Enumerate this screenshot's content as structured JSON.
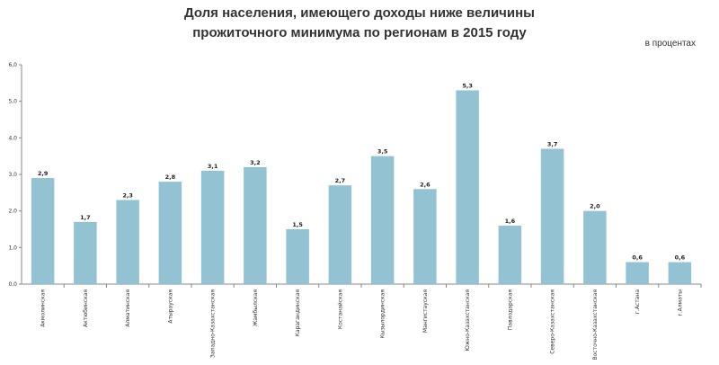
{
  "chart_data": {
    "type": "bar",
    "title_lines": [
      "Доля населения, имеющего доходы ниже величины",
      "прожиточного минимума  по регионам в 2015 году"
    ],
    "unit_label": "в процентах",
    "categories": [
      "Акмолинская",
      "Актюбинская",
      "Алматинская",
      "Атырауская",
      "Западно-Казахстанская",
      "Жамбылская",
      "Карагандинская",
      "Костанайская",
      "Кызылординская",
      "Мангистауская",
      "Южно-Казахстанская",
      "Павлодарская",
      "Северо-Казахстанская",
      "Восточно-Казахстанская",
      "г.Астана",
      "г.Алматы"
    ],
    "values": [
      2.9,
      1.7,
      2.3,
      2.8,
      3.1,
      3.2,
      1.5,
      2.7,
      3.5,
      2.6,
      5.3,
      1.6,
      3.7,
      2.0,
      0.6,
      0.6
    ],
    "value_labels": [
      "2,9",
      "1,7",
      "2,3",
      "2,8",
      "3,1",
      "3,2",
      "1,5",
      "2,7",
      "3,5",
      "2,6",
      "5,3",
      "1,6",
      "3,7",
      "2,0",
      "0,6",
      "0,6"
    ],
    "y_ticks": [
      "0,0",
      "1,0",
      "2,0",
      "3,0",
      "4,0",
      "5,0",
      "6,0"
    ],
    "ylim": [
      0,
      6
    ],
    "bar_color": "#93c3d3",
    "grid": false
  }
}
